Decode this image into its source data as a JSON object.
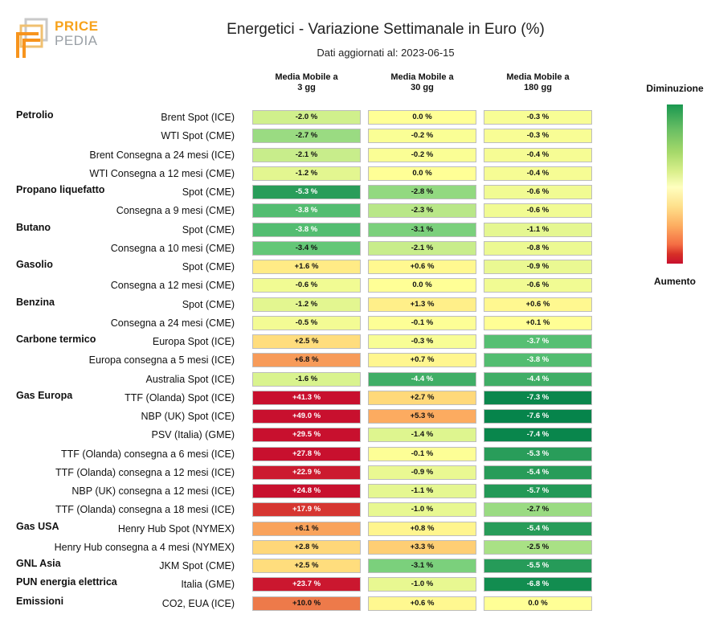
{
  "logo": {
    "word1": "PRICE",
    "word2": "PEDIA"
  },
  "header": {
    "title": "Energetici - Variazione Settimanale in Euro (%)",
    "subtitle": "Dati aggiornati al: 2023-06-15"
  },
  "legend": {
    "top_label": "Diminuzione",
    "bottom_label": "Aumento",
    "colors": [
      "#1a9850",
      "#ffffbf",
      "#c8102e"
    ]
  },
  "chart_data": {
    "type": "table",
    "title": "Energetici - Variazione Settimanale in Euro (%)",
    "columns": [
      {
        "line1": "Media Mobile a",
        "line2": "3 gg"
      },
      {
        "line1": "Media Mobile a",
        "line2": "30 gg"
      },
      {
        "line1": "Media Mobile a",
        "line2": "180 gg"
      }
    ],
    "rows": [
      {
        "group": "Petrolio",
        "label": "Brent Spot (ICE)",
        "values": [
          "-2.0 %",
          "0.0 %",
          "-0.3 %"
        ],
        "nums": [
          -2.0,
          0.0,
          -0.3
        ]
      },
      {
        "group": "",
        "label": "WTI Spot (CME)",
        "values": [
          "-2.7 %",
          "-0.2 %",
          "-0.3 %"
        ],
        "nums": [
          -2.7,
          -0.2,
          -0.3
        ]
      },
      {
        "group": "",
        "label": "Brent Consegna a 24 mesi (ICE)",
        "values": [
          "-2.1 %",
          "-0.2 %",
          "-0.4 %"
        ],
        "nums": [
          -2.1,
          -0.2,
          -0.4
        ]
      },
      {
        "group": "",
        "label": "WTI Consegna a 12 mesi (CME)",
        "values": [
          "-1.2 %",
          "0.0 %",
          "-0.4 %"
        ],
        "nums": [
          -1.2,
          0.0,
          -0.4
        ]
      },
      {
        "group": "Propano liquefatto",
        "label": "Spot (CME)",
        "values": [
          "-5.3 %",
          "-2.8 %",
          "-0.6 %"
        ],
        "nums": [
          -5.3,
          -2.8,
          -0.6
        ]
      },
      {
        "group": "",
        "label": "Consegna a 9 mesi (CME)",
        "values": [
          "-3.8 %",
          "-2.3 %",
          "-0.6 %"
        ],
        "nums": [
          -3.8,
          -2.3,
          -0.6
        ]
      },
      {
        "group": "Butano",
        "label": "Spot (CME)",
        "values": [
          "-3.8 %",
          "-3.1 %",
          "-1.1 %"
        ],
        "nums": [
          -3.8,
          -3.1,
          -1.1
        ]
      },
      {
        "group": "",
        "label": "Consegna a 10 mesi (CME)",
        "values": [
          "-3.4 %",
          "-2.1 %",
          "-0.8 %"
        ],
        "nums": [
          -3.4,
          -2.1,
          -0.8
        ]
      },
      {
        "group": "Gasolio",
        "label": "Spot (CME)",
        "values": [
          "+1.6 %",
          "+0.6 %",
          "-0.9 %"
        ],
        "nums": [
          1.6,
          0.6,
          -0.9
        ]
      },
      {
        "group": "",
        "label": "Consegna a 12 mesi (CME)",
        "values": [
          "-0.6 %",
          "0.0 %",
          "-0.6 %"
        ],
        "nums": [
          -0.6,
          0.0,
          -0.6
        ]
      },
      {
        "group": "Benzina",
        "label": "Spot (CME)",
        "values": [
          "-1.2 %",
          "+1.3 %",
          "+0.6 %"
        ],
        "nums": [
          -1.2,
          1.3,
          0.6
        ]
      },
      {
        "group": "",
        "label": "Consegna a 24 mesi (CME)",
        "values": [
          "-0.5 %",
          "-0.1 %",
          "+0.1 %"
        ],
        "nums": [
          -0.5,
          -0.1,
          0.1
        ]
      },
      {
        "group": "Carbone termico",
        "label": "Europa Spot (ICE)",
        "values": [
          "+2.5 %",
          "-0.3 %",
          "-3.7 %"
        ],
        "nums": [
          2.5,
          -0.3,
          -3.7
        ]
      },
      {
        "group": "",
        "label": "Europa consegna a 5 mesi (ICE)",
        "values": [
          "+6.8 %",
          "+0.7 %",
          "-3.8 %"
        ],
        "nums": [
          6.8,
          0.7,
          -3.8
        ]
      },
      {
        "group": "",
        "label": "Australia Spot (ICE)",
        "values": [
          "-1.6 %",
          "-4.4 %",
          "-4.4 %"
        ],
        "nums": [
          -1.6,
          -4.4,
          -4.4
        ]
      },
      {
        "group": "Gas Europa",
        "label": "TTF (Olanda) Spot (ICE)",
        "values": [
          "+41.3 %",
          "+2.7 %",
          "-7.3 %"
        ],
        "nums": [
          41.3,
          2.7,
          -7.3
        ]
      },
      {
        "group": "",
        "label": "NBP (UK) Spot (ICE)",
        "values": [
          "+49.0 %",
          "+5.3 %",
          "-7.6 %"
        ],
        "nums": [
          49.0,
          5.3,
          -7.6
        ]
      },
      {
        "group": "",
        "label": "PSV (Italia) (GME)",
        "values": [
          "+29.5 %",
          "-1.4 %",
          "-7.4 %"
        ],
        "nums": [
          29.5,
          -1.4,
          -7.4
        ]
      },
      {
        "group": "",
        "label": "TTF (Olanda) consegna a 6 mesi (ICE)",
        "values": [
          "+27.8 %",
          "-0.1 %",
          "-5.3 %"
        ],
        "nums": [
          27.8,
          -0.1,
          -5.3
        ]
      },
      {
        "group": "",
        "label": "TTF (Olanda) consegna a 12 mesi (ICE)",
        "values": [
          "+22.9 %",
          "-0.9 %",
          "-5.4 %"
        ],
        "nums": [
          22.9,
          -0.9,
          -5.4
        ]
      },
      {
        "group": "",
        "label": "NBP (UK) consegna a 12 mesi (ICE)",
        "values": [
          "+24.8 %",
          "-1.1 %",
          "-5.7 %"
        ],
        "nums": [
          24.8,
          -1.1,
          -5.7
        ]
      },
      {
        "group": "",
        "label": "TTF (Olanda) consegna a 18 mesi (ICE)",
        "values": [
          "+17.9 %",
          "-1.0 %",
          "-2.7 %"
        ],
        "nums": [
          17.9,
          -1.0,
          -2.7
        ]
      },
      {
        "group": "Gas USA",
        "label": "Henry Hub Spot (NYMEX)",
        "values": [
          "+6.1 %",
          "+0.8 %",
          "-5.4 %"
        ],
        "nums": [
          6.1,
          0.8,
          -5.4
        ]
      },
      {
        "group": "",
        "label": "Henry Hub consegna a 4 mesi (NYMEX)",
        "values": [
          "+2.8 %",
          "+3.3 %",
          "-2.5 %"
        ],
        "nums": [
          2.8,
          3.3,
          -2.5
        ]
      },
      {
        "group": "GNL Asia",
        "label": "JKM Spot (CME)",
        "values": [
          "+2.5 %",
          "-3.1 %",
          "-5.5 %"
        ],
        "nums": [
          2.5,
          -3.1,
          -5.5
        ]
      },
      {
        "group": "PUN energia elettrica",
        "label": "Italia (GME)",
        "values": [
          "+23.7 %",
          "-1.0 %",
          "-6.8 %"
        ],
        "nums": [
          23.7,
          -1.0,
          -6.8
        ]
      },
      {
        "group": "Emissioni",
        "label": "CO2, EUA (ICE)",
        "values": [
          "+10.0 %",
          "+0.6 %",
          "0.0 %"
        ],
        "nums": [
          10.0,
          0.6,
          0.0
        ]
      }
    ]
  }
}
